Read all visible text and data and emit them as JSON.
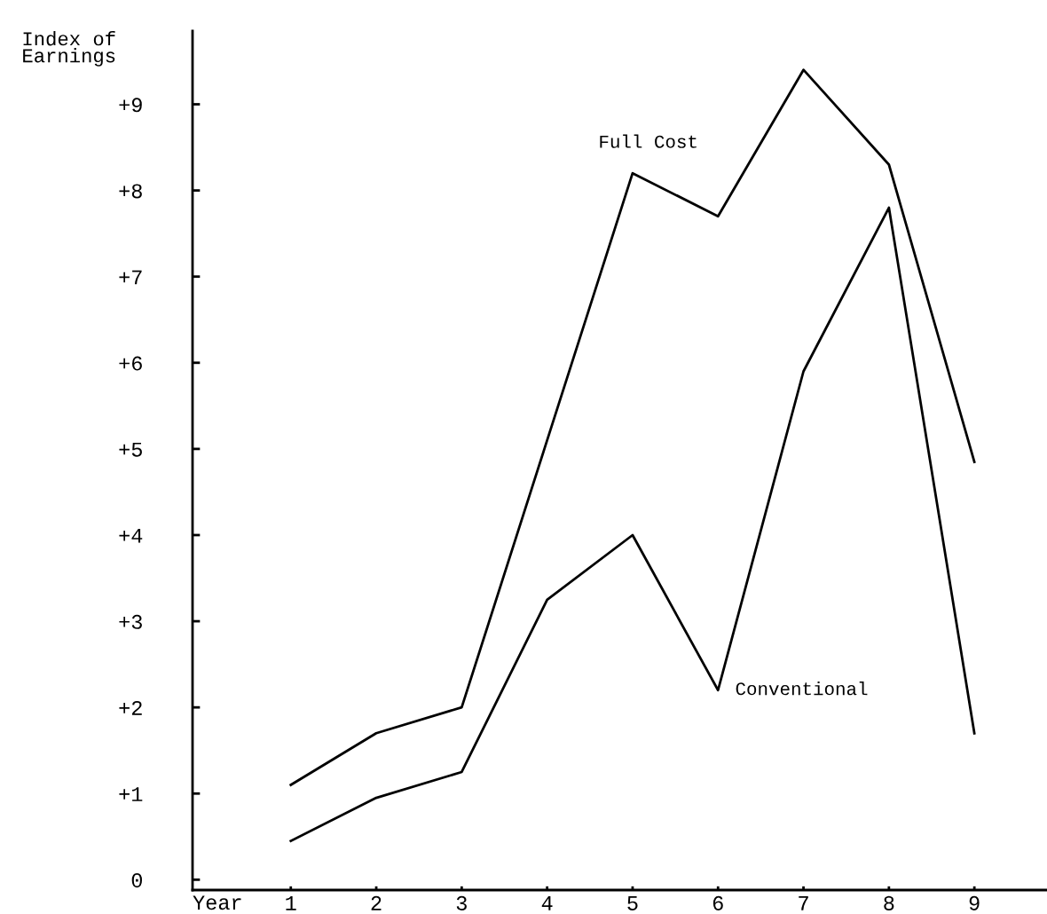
{
  "chart_data": {
    "type": "line",
    "ylabel": "Index of\nEarnings",
    "xlabel": "Year",
    "x": [
      1,
      2,
      3,
      4,
      5,
      6,
      7,
      8,
      9
    ],
    "series": [
      {
        "name": "Full Cost",
        "color": "#000000",
        "values": [
          1.1,
          1.7,
          2.0,
          5.1,
          8.2,
          7.7,
          9.4,
          8.3,
          4.85
        ]
      },
      {
        "name": "Conventional",
        "color": "#000000",
        "values": [
          0.45,
          0.95,
          1.25,
          3.25,
          4.0,
          2.2,
          5.9,
          7.8,
          1.7
        ]
      }
    ],
    "xlim": [
      -0.15,
      9.85
    ],
    "ylim": [
      -0.12,
      9.85
    ],
    "xticks": [
      1,
      2,
      3,
      4,
      5,
      6,
      7,
      8,
      9
    ],
    "yticks": [
      0,
      {
        "value": 1,
        "label": "+1"
      },
      {
        "value": 2,
        "label": "+2"
      },
      {
        "value": 3,
        "label": "+3"
      },
      {
        "value": 4,
        "label": "+4"
      },
      {
        "value": 5,
        "label": "+5"
      },
      {
        "value": 6,
        "label": "+6"
      },
      {
        "value": 7,
        "label": "+7"
      },
      {
        "value": 8,
        "label": "+8"
      },
      {
        "value": 9,
        "label": "+9"
      }
    ],
    "grid": false,
    "legend": false,
    "marker": "none",
    "line_style": "solid"
  }
}
